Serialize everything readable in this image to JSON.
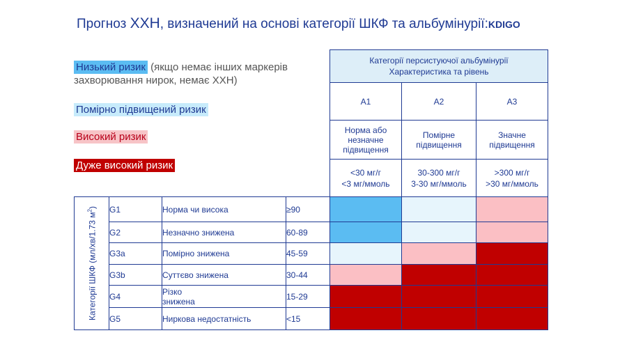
{
  "title": {
    "prefix": "Прогноз ",
    "abbr": "ХХН",
    "rest": ", визначений на основі категорії ШКФ та альбумінурії:",
    "source": "KDIGO"
  },
  "legend": {
    "low": {
      "label": "Низький ризик",
      "note": "(якщо немає інших маркерів",
      "note2": "захворювання нирок, немає ХХН)"
    },
    "moderate": {
      "label": "Помірно підвищений ризик"
    },
    "high": {
      "label": "Високий ризик"
    },
    "very_high": {
      "label": "Дуже високий ризик"
    }
  },
  "colors": {
    "low": "#5bbcf2",
    "moderate": "#e7f5fc",
    "high": "#fbbfc4",
    "very_high": "#c00000",
    "border": "#1f3a93"
  },
  "albuminuria": {
    "header1": "Категорії персистуючої альбумінурії",
    "header2": "Характеристика та рівень",
    "columns": [
      {
        "code": "A1",
        "desc1": "Норма або",
        "desc2": "незначне",
        "desc3": "підвищення",
        "val1": "<30 мг/г",
        "val2": "<3 мг/ммоль"
      },
      {
        "code": "A2",
        "desc1": "Помірне",
        "desc2": "підвищення",
        "desc3": "",
        "val1": "30-300 мг/г",
        "val2": "3-30 мг/ммоль"
      },
      {
        "code": "A3",
        "desc1": "Значне",
        "desc2": "підвищення",
        "desc3": "",
        "val1": ">300 мг/г",
        "val2": ">30 мг/ммоль"
      }
    ]
  },
  "gfr": {
    "side_label": "Категорії ШКФ (мл/хв/1.73 м",
    "side_sup": "2",
    "side_end": ")",
    "rows": [
      {
        "code": "G1",
        "desc": "Норма чи висока",
        "desc2": "",
        "range": "≥90",
        "risk": [
          "low",
          "moderate",
          "high"
        ]
      },
      {
        "code": "G2",
        "desc": "Незначно знижена",
        "desc2": "",
        "range": "60-89",
        "risk": [
          "low",
          "moderate",
          "high"
        ]
      },
      {
        "code": "G3a",
        "desc": "Помірно знижена",
        "desc2": "",
        "range": "45-59",
        "risk": [
          "moderate",
          "high",
          "very_high"
        ]
      },
      {
        "code": "G3b",
        "desc": "Суттєво знижена",
        "desc2": "",
        "range": "30-44",
        "risk": [
          "high",
          "very_high",
          "very_high"
        ]
      },
      {
        "code": "G4",
        "desc": "Різко",
        "desc2": "знижена",
        "range": "15-29",
        "risk": [
          "very_high",
          "very_high",
          "very_high"
        ]
      },
      {
        "code": "G5",
        "desc": "Ниркова недостатність",
        "desc2": "",
        "range": "<15",
        "risk": [
          "very_high",
          "very_high",
          "very_high"
        ]
      }
    ]
  }
}
